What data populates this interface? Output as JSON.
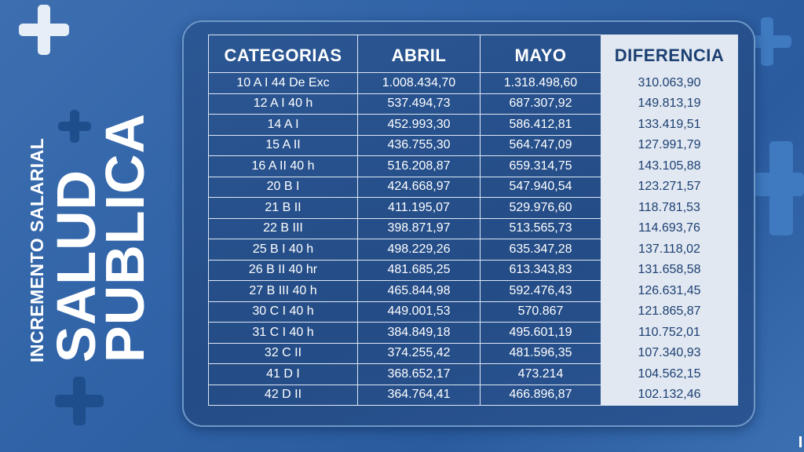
{
  "side": {
    "subtitle": "INCREMENTO SALARIAL",
    "title_line1": "SALUD",
    "title_line2": "PUBLICA"
  },
  "table": {
    "headers": [
      "CATEGORIAS",
      "ABRIL",
      "MAYO",
      "DIFERENCIA"
    ],
    "rows": [
      [
        "10 A I 44 De Exc",
        "1.008.434,70",
        "1.318.498,60",
        "310.063,90"
      ],
      [
        "12 A I 40 h",
        "537.494,73",
        "687.307,92",
        "149.813,19"
      ],
      [
        "14 A I",
        "452.993,30",
        "586.412,81",
        "133.419,51"
      ],
      [
        "15 A II",
        "436.755,30",
        "564.747,09",
        "127.991,79"
      ],
      [
        "16 A II 40 h",
        "516.208,87",
        "659.314,75",
        "143.105,88"
      ],
      [
        "20 B I",
        "424.668,97",
        "547.940,54",
        "123.271,57"
      ],
      [
        "21 B II",
        "411.195,07",
        "529.976,60",
        "118.781,53"
      ],
      [
        "22 B III",
        "398.871,97",
        "513.565,73",
        "114.693,76"
      ],
      [
        "25 B I 40 h",
        "498.229,26",
        "635.347,28",
        "137.118,02"
      ],
      [
        "26 B II 40 hr",
        "481.685,25",
        "613.343,83",
        "131.658,58"
      ],
      [
        "27 B III 40 h",
        "465.844,98",
        "592.476,43",
        "126.631,45"
      ],
      [
        "30 C I 40 h",
        "449.001,53",
        "570.867",
        "121.865,87"
      ],
      [
        "31 C I 40 h",
        "384.849,18",
        "495.601,19",
        "110.752,01"
      ],
      [
        "32 C II",
        "374.255,42",
        "481.596,35",
        "107.340,93"
      ],
      [
        "41 D I",
        "368.652,17",
        "473.214",
        "104.562,15"
      ],
      [
        "42 D II",
        "364.764,41",
        "466.896,87",
        "102.132,46"
      ]
    ]
  },
  "colors": {
    "background": "#2f62a6",
    "panel": "#244c86",
    "highlight_column": "#e1e8f1",
    "highlight_text": "#1c3f72",
    "text": "#ffffff"
  },
  "icons": [
    "plus-cross-icon"
  ]
}
